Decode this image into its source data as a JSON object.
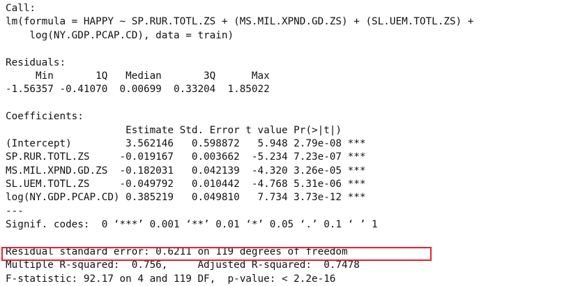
{
  "highlight_color": "#e8202a",
  "output": {
    "lines": [
      "Call:",
      "lm(formula = HAPPY ~ SP.RUR.TOTL.ZS + (MS.MIL.XPND.GD.ZS) + (SL.UEM.TOTL.ZS) +",
      "    log(NY.GDP.PCAP.CD), data = train)",
      "",
      "Residuals:",
      "     Min       1Q   Median       3Q      Max ",
      "-1.56357 -0.41070  0.00699  0.33204  1.85022 ",
      "",
      "Coefficients:",
      "                    Estimate Std. Error t value Pr(>|t|)    ",
      "(Intercept)         3.562146   0.598872   5.948 2.79e-08 ***",
      "SP.RUR.TOTL.ZS     -0.019167   0.003662  -5.234 7.23e-07 ***",
      "MS.MIL.XPND.GD.ZS  -0.182031   0.042139  -4.320 3.26e-05 ***",
      "SL.UEM.TOTL.ZS     -0.049792   0.010442  -4.768 5.31e-06 ***",
      "log(NY.GDP.PCAP.CD) 0.385219   0.049810   7.734 3.73e-12 ***",
      "---",
      "Signif. codes:  0 ‘***’ 0.001 ‘**’ 0.01 ‘*’ 0.05 ‘.’ 0.1 ‘ ’ 1",
      "",
      "Residual standard error: 0.6211 on 119 degrees of freedom",
      "Multiple R-squared:  0.756,\tAdjusted R-squared:  0.7478 ",
      "F-statistic: 92.17 on 4 and 119 DF,  p-value: < 2.2e-16"
    ]
  }
}
